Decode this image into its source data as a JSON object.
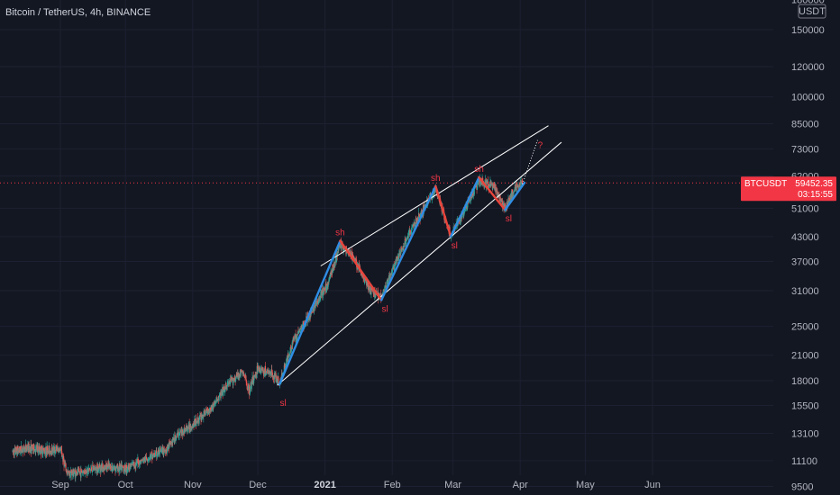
{
  "header": {
    "title": "Bitcoin / TetherUS, 4h, BINANCE"
  },
  "currency_badge": "USDT",
  "price_badge": {
    "symbol": "BTCUSDT",
    "price": "59452.35",
    "countdown": "03:15:55",
    "color": "#f23645"
  },
  "colors": {
    "background": "#131722",
    "up": "#26a69a",
    "down": "#ef5350",
    "up_leg": "#2f8de4",
    "down_leg": "#e8453c",
    "channel": "#ffffff",
    "label": "#f23645"
  },
  "chart_data": {
    "type": "candlestick",
    "symbol": "Bitcoin / TetherUS",
    "interval": "4h",
    "exchange": "BINANCE",
    "scale": "log",
    "ylim": [
      8800,
      180000
    ],
    "y_ticks": [
      180000,
      150000,
      120000,
      100000,
      85000,
      73000,
      62000,
      51000,
      43000,
      37000,
      31000,
      25000,
      21000,
      18000,
      15500,
      13100,
      11100,
      9500
    ],
    "x_ticks": [
      {
        "label": "Sep",
        "date": "2020-09-01",
        "bold": false
      },
      {
        "label": "Oct",
        "date": "2020-10-01",
        "bold": false
      },
      {
        "label": "Nov",
        "date": "2020-11-01",
        "bold": false
      },
      {
        "label": "Dec",
        "date": "2020-12-01",
        "bold": false
      },
      {
        "label": "2021",
        "date": "2021-01-01",
        "bold": true
      },
      {
        "label": "Feb",
        "date": "2021-02-01",
        "bold": false
      },
      {
        "label": "Mar",
        "date": "2021-03-01",
        "bold": false
      },
      {
        "label": "Apr",
        "date": "2021-04-01",
        "bold": false
      },
      {
        "label": "May",
        "date": "2021-05-01",
        "bold": false
      },
      {
        "label": "Jun",
        "date": "2021-06-01",
        "bold": false
      }
    ],
    "price_path": [
      [
        "2020-08-10",
        11700
      ],
      [
        "2020-08-17",
        12000
      ],
      [
        "2020-08-25",
        11800
      ],
      [
        "2020-09-01",
        11900
      ],
      [
        "2020-09-04",
        10300
      ],
      [
        "2020-09-10",
        10350
      ],
      [
        "2020-09-20",
        10700
      ],
      [
        "2020-10-01",
        10600
      ],
      [
        "2020-10-10",
        11200
      ],
      [
        "2020-10-20",
        11900
      ],
      [
        "2020-10-25",
        13000
      ],
      [
        "2020-11-01",
        13800
      ],
      [
        "2020-11-10",
        15400
      ],
      [
        "2020-11-18",
        17800
      ],
      [
        "2020-11-24",
        19000
      ],
      [
        "2020-11-27",
        17000
      ],
      [
        "2020-12-01",
        19400
      ],
      [
        "2020-12-08",
        18700
      ],
      [
        "2020-12-11",
        17700
      ],
      [
        "2020-12-17",
        22700
      ],
      [
        "2020-12-27",
        28000
      ],
      [
        "2021-01-02",
        32000
      ],
      [
        "2021-01-08",
        41000
      ],
      [
        "2021-01-14",
        38000
      ],
      [
        "2021-01-22",
        31000
      ],
      [
        "2021-01-27",
        30000
      ],
      [
        "2021-02-08",
        43000
      ],
      [
        "2021-02-21",
        57500
      ],
      [
        "2021-02-28",
        43000
      ],
      [
        "2021-03-13",
        60000
      ],
      [
        "2021-03-20",
        58000
      ],
      [
        "2021-03-25",
        51000
      ],
      [
        "2021-03-29",
        57000
      ],
      [
        "2021-04-02",
        59452
      ]
    ],
    "swings": [
      {
        "date": "2020-12-11",
        "price": 17600,
        "label": "sl"
      },
      {
        "date": "2021-01-08",
        "price": 41900,
        "label": "sh"
      },
      {
        "date": "2021-01-27",
        "price": 29300,
        "label": "sl"
      },
      {
        "date": "2021-02-21",
        "price": 58300,
        "label": "sh"
      },
      {
        "date": "2021-02-28",
        "price": 43000,
        "label": "sl"
      },
      {
        "date": "2021-03-13",
        "price": 61500,
        "label": "sh"
      },
      {
        "date": "2021-03-25",
        "price": 50500,
        "label": "sl"
      },
      {
        "date": "2021-04-03",
        "price": 59500,
        "label": ""
      }
    ],
    "channel_upper": [
      [
        "2020-12-30",
        36000
      ],
      [
        "2021-04-14",
        84000
      ]
    ],
    "channel_lower": [
      [
        "2020-12-10",
        17500
      ],
      [
        "2021-04-20",
        76000
      ]
    ],
    "projection": {
      "from": [
        "2021-04-02",
        59000
      ],
      "to": [
        "2021-04-09",
        77000
      ],
      "label": "?"
    },
    "last_price": 59452.35
  }
}
